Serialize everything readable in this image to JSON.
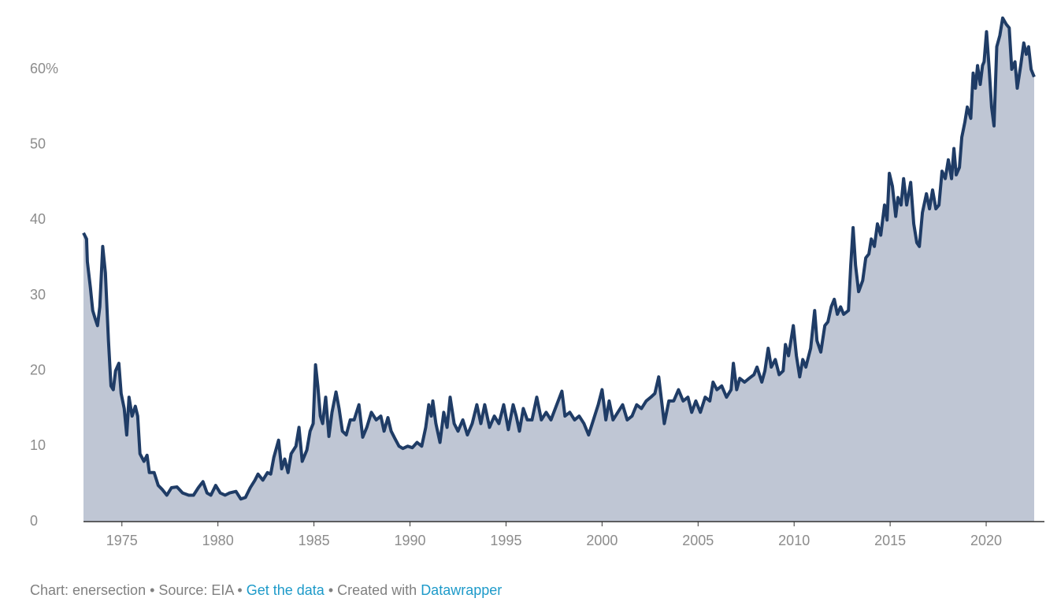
{
  "chart_data": {
    "type": "area",
    "x": [
      1973.0,
      1973.16,
      1973.2,
      1973.36,
      1973.48,
      1973.6,
      1973.73,
      1973.85,
      1974.0,
      1974.14,
      1974.3,
      1974.43,
      1974.55,
      1974.67,
      1974.84,
      1974.96,
      1975.12,
      1975.25,
      1975.37,
      1975.53,
      1975.7,
      1975.82,
      1975.94,
      1976.15,
      1976.31,
      1976.43,
      1976.68,
      1976.89,
      1977.09,
      1977.34,
      1977.58,
      1977.87,
      1978.16,
      1978.48,
      1978.73,
      1978.98,
      1979.22,
      1979.43,
      1979.63,
      1979.88,
      1980.12,
      1980.37,
      1980.61,
      1980.94,
      1981.19,
      1981.43,
      1981.68,
      1981.93,
      1982.09,
      1982.34,
      1982.58,
      1982.75,
      1982.91,
      1983.16,
      1983.32,
      1983.48,
      1983.65,
      1983.81,
      1984.06,
      1984.22,
      1984.39,
      1984.63,
      1984.8,
      1984.96,
      1985.08,
      1985.2,
      1985.33,
      1985.45,
      1985.61,
      1985.78,
      1985.94,
      1986.15,
      1986.31,
      1986.48,
      1986.68,
      1986.89,
      1987.09,
      1987.34,
      1987.54,
      1987.75,
      1987.99,
      1988.24,
      1988.48,
      1988.65,
      1988.85,
      1989.02,
      1989.22,
      1989.43,
      1989.63,
      1989.88,
      1990.12,
      1990.37,
      1990.61,
      1990.82,
      1990.98,
      1991.11,
      1991.19,
      1991.35,
      1991.56,
      1991.76,
      1991.93,
      1992.09,
      1992.3,
      1992.5,
      1992.75,
      1992.99,
      1993.24,
      1993.48,
      1993.69,
      1993.89,
      1994.14,
      1994.39,
      1994.63,
      1994.88,
      1995.12,
      1995.37,
      1995.53,
      1995.7,
      1995.9,
      1996.11,
      1996.35,
      1996.6,
      1996.84,
      1997.09,
      1997.34,
      1997.91,
      1998.07,
      1998.32,
      1998.57,
      1998.81,
      1999.06,
      1999.3,
      1999.55,
      1999.8,
      2000.0,
      2000.2,
      2000.37,
      2000.57,
      2000.82,
      2001.07,
      2001.31,
      2001.56,
      2001.8,
      2002.05,
      2002.3,
      2002.54,
      2002.75,
      2002.95,
      2003.24,
      2003.48,
      2003.73,
      2003.98,
      2004.22,
      2004.47,
      2004.67,
      2004.88,
      2005.12,
      2005.37,
      2005.61,
      2005.78,
      2005.98,
      2006.23,
      2006.48,
      2006.72,
      2006.84,
      2007.01,
      2007.17,
      2007.42,
      2007.66,
      2007.91,
      2008.07,
      2008.32,
      2008.48,
      2008.65,
      2008.81,
      2009.02,
      2009.22,
      2009.43,
      2009.55,
      2009.71,
      2009.96,
      2010.12,
      2010.29,
      2010.45,
      2010.61,
      2010.86,
      2011.07,
      2011.19,
      2011.39,
      2011.6,
      2011.76,
      2011.93,
      2012.09,
      2012.25,
      2012.42,
      2012.58,
      2012.83,
      2012.95,
      2013.07,
      2013.2,
      2013.36,
      2013.57,
      2013.73,
      2013.89,
      2014.02,
      2014.18,
      2014.34,
      2014.51,
      2014.71,
      2014.84,
      2014.96,
      2015.12,
      2015.29,
      2015.41,
      2015.57,
      2015.7,
      2015.86,
      2016.07,
      2016.23,
      2016.39,
      2016.52,
      2016.68,
      2016.89,
      2017.05,
      2017.21,
      2017.38,
      2017.54,
      2017.7,
      2017.87,
      2018.03,
      2018.2,
      2018.32,
      2018.44,
      2018.61,
      2018.73,
      2018.89,
      2019.02,
      2019.2,
      2019.32,
      2019.44,
      2019.55,
      2019.69,
      2019.81,
      2019.89,
      2020.02,
      2020.16,
      2020.28,
      2020.41,
      2020.55,
      2020.71,
      2020.86,
      2021.04,
      2021.2,
      2021.33,
      2021.5,
      2021.62,
      2021.8,
      2021.96,
      2022.09,
      2022.21,
      2022.34,
      2022.5
    ],
    "series": [
      {
        "color": "#1f3c66",
        "fill": "#bfc6d4",
        "values": [
          38.3,
          37.5,
          34.5,
          31,
          28,
          27,
          26,
          28.5,
          36.5,
          33,
          24,
          18,
          17.5,
          20,
          21,
          17,
          15,
          11.5,
          16.5,
          14,
          15.3,
          14,
          9,
          8,
          8.8,
          6.5,
          6.5,
          4.8,
          4.3,
          3.5,
          4.5,
          4.6,
          3.8,
          3.5,
          3.5,
          4.5,
          5.3,
          3.8,
          3.5,
          4.8,
          3.8,
          3.5,
          3.8,
          4,
          3,
          3.2,
          4.5,
          5.5,
          6.3,
          5.5,
          6.5,
          6.3,
          8.5,
          10.8,
          7,
          8.3,
          6.5,
          9,
          10,
          12.5,
          8,
          9.5,
          12,
          13,
          20.8,
          18,
          14,
          13,
          16.5,
          11.3,
          14.5,
          17.2,
          15,
          12,
          11.5,
          13.5,
          13.5,
          15.5,
          11.2,
          12.5,
          14.5,
          13.5,
          14,
          12,
          13.8,
          12,
          11,
          10,
          9.7,
          10,
          9.8,
          10.5,
          10,
          12.5,
          15.5,
          14,
          16,
          13,
          10.5,
          14.5,
          12.5,
          16.5,
          13,
          12,
          13.5,
          11.5,
          13,
          15.5,
          13,
          15.5,
          12.5,
          14,
          13,
          15.5,
          12.2,
          15.5,
          14,
          12,
          15,
          13.5,
          13.5,
          16.5,
          13.5,
          14.5,
          13.5,
          17.3,
          14,
          14.5,
          13.5,
          14,
          13,
          11.5,
          13.5,
          15.5,
          17.5,
          13.5,
          16,
          13.5,
          14.5,
          15.5,
          13.5,
          14,
          15.5,
          15,
          16,
          16.5,
          17,
          19.2,
          13,
          16,
          16,
          17.5,
          16,
          16.5,
          14.5,
          16,
          14.5,
          16.5,
          16,
          18.5,
          17.5,
          18,
          16.5,
          17.5,
          21,
          17.5,
          19,
          18.5,
          19,
          19.5,
          20.5,
          18.5,
          20,
          23,
          20.5,
          21.5,
          19.5,
          20,
          23.5,
          22,
          26,
          22,
          19.2,
          21.5,
          20.5,
          23,
          28,
          24,
          22.5,
          26,
          26.5,
          28.5,
          29.5,
          27.5,
          28.5,
          27.5,
          28,
          34,
          39,
          34,
          30.5,
          32,
          35,
          35.5,
          37.5,
          36.5,
          39.5,
          38,
          42,
          40,
          46.2,
          44.5,
          40.5,
          43,
          42,
          45.5,
          42,
          45,
          39.5,
          37,
          36.5,
          41,
          43.5,
          41.5,
          44,
          41.5,
          42,
          46.5,
          45.5,
          48,
          45.5,
          49.5,
          46,
          47,
          51,
          53,
          55,
          53.5,
          59.5,
          57.5,
          60.5,
          58,
          60.5,
          61,
          65,
          60,
          55,
          52.5,
          63,
          64.5,
          66.8,
          66,
          65.5,
          60,
          61,
          57.5,
          60.5,
          63.5,
          62,
          63,
          60,
          59
        ]
      }
    ],
    "xlim": [
      1973,
      2022.5
    ],
    "xticks": [
      1975,
      1980,
      1985,
      1990,
      1995,
      2000,
      2005,
      2010,
      2015,
      2020
    ],
    "ylim": [
      0,
      68
    ],
    "yticks": [
      0,
      10,
      20,
      30,
      40,
      {
        "value": 60,
        "label": "60%"
      },
      50
    ],
    "footer": {
      "prefix": "Chart: enersection • Source: EIA • ",
      "link1": "Get the data",
      "middle": " • Created with ",
      "link2": "Datawrapper"
    }
  }
}
